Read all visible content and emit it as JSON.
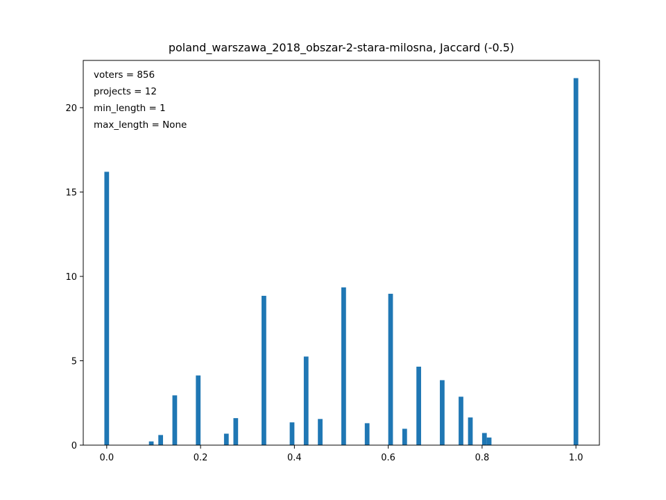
{
  "chart_data": {
    "type": "bar",
    "title": "poland_warszawa_2018_obszar-2-stara-milosna, Jaccard (-0.5)",
    "xlabel": "",
    "ylabel": "",
    "xlim": [
      -0.05,
      1.05
    ],
    "ylim": [
      0,
      22.8
    ],
    "grid": false,
    "bar_color": "#1f77b4",
    "bar_width": 0.01,
    "x_ticks": [
      0.0,
      0.2,
      0.4,
      0.6,
      0.8,
      1.0
    ],
    "x_tick_labels": [
      "0.0",
      "0.2",
      "0.4",
      "0.6",
      "0.8",
      "1.0"
    ],
    "y_ticks": [
      0,
      5,
      10,
      15,
      20
    ],
    "y_tick_labels": [
      "0",
      "5",
      "10",
      "15",
      "20"
    ],
    "annotations": [
      "voters = 856",
      "projects = 12",
      "min_length = 1",
      "max_length = None"
    ],
    "bars": [
      {
        "x": 0.0,
        "value": 16.2
      },
      {
        "x": 0.095,
        "value": 0.22
      },
      {
        "x": 0.115,
        "value": 0.6
      },
      {
        "x": 0.145,
        "value": 2.95
      },
      {
        "x": 0.195,
        "value": 4.13
      },
      {
        "x": 0.255,
        "value": 0.68
      },
      {
        "x": 0.275,
        "value": 1.6
      },
      {
        "x": 0.335,
        "value": 8.85
      },
      {
        "x": 0.395,
        "value": 1.35
      },
      {
        "x": 0.425,
        "value": 5.25
      },
      {
        "x": 0.455,
        "value": 1.55
      },
      {
        "x": 0.505,
        "value": 9.35
      },
      {
        "x": 0.555,
        "value": 1.3
      },
      {
        "x": 0.605,
        "value": 8.97
      },
      {
        "x": 0.635,
        "value": 0.97
      },
      {
        "x": 0.665,
        "value": 4.65
      },
      {
        "x": 0.715,
        "value": 3.85
      },
      {
        "x": 0.755,
        "value": 2.87
      },
      {
        "x": 0.775,
        "value": 1.64
      },
      {
        "x": 0.805,
        "value": 0.72
      },
      {
        "x": 0.815,
        "value": 0.45
      },
      {
        "x": 1.0,
        "value": 21.75
      }
    ]
  }
}
